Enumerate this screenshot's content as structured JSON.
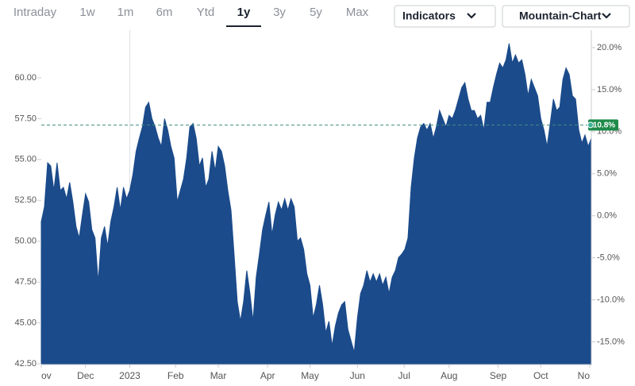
{
  "toolbar": {
    "tabs": [
      "Intraday",
      "1w",
      "1m",
      "6m",
      "Ytd",
      "1y",
      "3y",
      "5y",
      "Max"
    ],
    "selected_tab": 5,
    "buttons": [
      "Indicators",
      "Mountain-Chart"
    ]
  },
  "chart_data": {
    "type": "area",
    "color": "#1b4b8b",
    "values": [
      51.2,
      52.1,
      54.8,
      54.6,
      53.1,
      54.8,
      53.1,
      53.3,
      52.6,
      53.6,
      52.4,
      50.9,
      50.2,
      51.6,
      52.9,
      52.4,
      50.7,
      50.2,
      47.5,
      50.2,
      50.9,
      49.7,
      51.2,
      52.1,
      53.3,
      51.9,
      53.3,
      52.6,
      53.1,
      54.1,
      55.5,
      56.3,
      57.0,
      58.2,
      58.5,
      57.5,
      57.0,
      56.3,
      55.8,
      57.5,
      56.8,
      55.8,
      55.1,
      52.4,
      53.1,
      53.8,
      55.1,
      57.0,
      57.2,
      56.3,
      54.6,
      55.1,
      53.3,
      53.8,
      55.5,
      54.3,
      55.8,
      55.5,
      54.6,
      53.1,
      51.9,
      49.2,
      46.3,
      45.1,
      46.3,
      48.2,
      46.8,
      45.1,
      47.8,
      49.2,
      50.7,
      51.6,
      52.4,
      50.4,
      51.6,
      52.4,
      51.9,
      52.6,
      51.9,
      52.6,
      52.1,
      50.0,
      50.2,
      49.5,
      48.0,
      47.3,
      45.3,
      46.1,
      47.3,
      46.1,
      44.4,
      45.1,
      43.6,
      44.8,
      45.6,
      46.1,
      46.3,
      44.6,
      43.9,
      43.2,
      45.3,
      46.8,
      47.3,
      48.2,
      47.5,
      48.0,
      47.5,
      48.0,
      47.3,
      47.8,
      46.8,
      47.8,
      48.2,
      49.0,
      49.2,
      49.5,
      50.2,
      53.3,
      55.1,
      56.3,
      57.0,
      57.2,
      56.8,
      57.2,
      56.3,
      57.0,
      58.0,
      57.5,
      57.0,
      57.7,
      57.5,
      58.0,
      58.7,
      59.4,
      59.7,
      58.7,
      58.0,
      58.0,
      57.5,
      57.7,
      56.8,
      58.5,
      58.5,
      59.4,
      60.2,
      60.9,
      60.6,
      61.1,
      62.1,
      60.9,
      61.4,
      60.9,
      61.1,
      60.2,
      58.9,
      59.9,
      59.4,
      58.9,
      57.5,
      56.8,
      55.8,
      57.2,
      58.7,
      58.0,
      58.2,
      59.9,
      60.6,
      60.2,
      58.9,
      58.7,
      56.8,
      56.0,
      56.5,
      55.8,
      56.3
    ],
    "xlim": [
      0,
      174
    ],
    "xticks": [
      {
        "value": 0,
        "label": "ov"
      },
      {
        "value": 14,
        "label": "Dec"
      },
      {
        "value": 28,
        "label": "2023"
      },
      {
        "value": 42.5,
        "label": "Feb"
      },
      {
        "value": 56,
        "label": "Mar"
      },
      {
        "value": 71.6,
        "label": "Apr"
      },
      {
        "value": 85,
        "label": "May"
      },
      {
        "value": 100,
        "label": "Jun"
      },
      {
        "value": 114.8,
        "label": "Jul"
      },
      {
        "value": 129,
        "label": "Aug"
      },
      {
        "value": 144.5,
        "label": "Sep"
      },
      {
        "value": 158,
        "label": "Oct"
      },
      {
        "value": 173.5,
        "label": "No"
      }
    ],
    "ylim": [
      42.5,
      62.33
    ],
    "yticks": [
      {
        "value": 42.5,
        "label": "42.50"
      },
      {
        "value": 45,
        "label": "45.00"
      },
      {
        "value": 47.5,
        "label": "47.50"
      },
      {
        "value": 50,
        "label": "50.00"
      },
      {
        "value": 52.5,
        "label": "52.50"
      },
      {
        "value": 55,
        "label": "55.00"
      },
      {
        "value": 57.5,
        "label": "57.50"
      },
      {
        "value": 60,
        "label": "60.00"
      }
    ],
    "y2lim": [
      -17.6,
      20.94
    ],
    "y2ticks": [
      {
        "value": -15,
        "label": "-15.0%"
      },
      {
        "value": -10,
        "label": "-10.0%"
      },
      {
        "value": -5,
        "label": "-5.0%"
      },
      {
        "value": 0,
        "label": "0.0%"
      },
      {
        "value": 5,
        "label": "5.0%"
      },
      {
        "value": 10,
        "label": "10.0%"
      },
      {
        "value": 15,
        "label": "15.0%"
      },
      {
        "value": 20,
        "label": "20.0%"
      }
    ],
    "reference_line": {
      "value": 10.8,
      "axis": "y2",
      "label": "10.8%",
      "color": "#1e8a4a"
    }
  }
}
